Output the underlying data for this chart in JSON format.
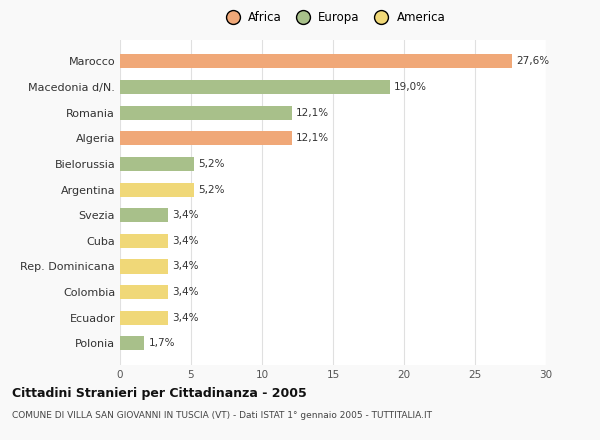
{
  "categories": [
    "Marocco",
    "Macedonia d/N.",
    "Romania",
    "Algeria",
    "Bielorussia",
    "Argentina",
    "Svezia",
    "Cuba",
    "Rep. Dominicana",
    "Colombia",
    "Ecuador",
    "Polonia"
  ],
  "values": [
    27.6,
    19.0,
    12.1,
    12.1,
    5.2,
    5.2,
    3.4,
    3.4,
    3.4,
    3.4,
    3.4,
    1.7
  ],
  "labels": [
    "27,6%",
    "19,0%",
    "12,1%",
    "12,1%",
    "5,2%",
    "5,2%",
    "3,4%",
    "3,4%",
    "3,4%",
    "3,4%",
    "3,4%",
    "1,7%"
  ],
  "colors": [
    "#F0A878",
    "#A8C08A",
    "#A8C08A",
    "#F0A878",
    "#A8C08A",
    "#F0D878",
    "#A8C08A",
    "#F0D878",
    "#F0D878",
    "#F0D878",
    "#F0D878",
    "#A8C08A"
  ],
  "legend": [
    {
      "label": "Africa",
      "color": "#F0A878"
    },
    {
      "label": "Europa",
      "color": "#A8C08A"
    },
    {
      "label": "America",
      "color": "#F0D878"
    }
  ],
  "title": "Cittadini Stranieri per Cittadinanza - 2005",
  "subtitle": "COMUNE DI VILLA SAN GIOVANNI IN TUSCIA (VT) - Dati ISTAT 1° gennaio 2005 - TUTTITALIA.IT",
  "xlim": [
    0,
    30
  ],
  "xticks": [
    0,
    5,
    10,
    15,
    20,
    25,
    30
  ],
  "background_color": "#f9f9f9",
  "plot_background": "#ffffff",
  "grid_color": "#e0e0e0",
  "figsize": [
    6.0,
    4.4
  ],
  "dpi": 100
}
